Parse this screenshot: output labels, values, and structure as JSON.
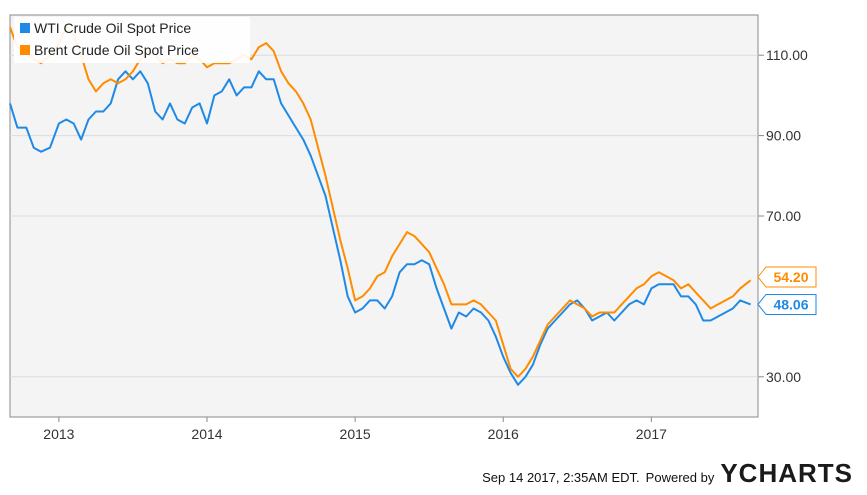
{
  "chart_data": {
    "type": "line",
    "title": "",
    "xlabel": "",
    "ylabel": "",
    "x_ticks": [
      "2013",
      "2014",
      "2015",
      "2016",
      "2017"
    ],
    "y_ticks": [
      "30.00",
      "70.00",
      "90.00",
      "110.00"
    ],
    "ylim": [
      20,
      120
    ],
    "grid": true,
    "legend_position": "top-left",
    "series": [
      {
        "name": "WTI Crude Oil Spot Price",
        "color": "#1f8ae6",
        "last_label": "48.06",
        "x": [
          2012.67,
          2012.72,
          2012.78,
          2012.83,
          2012.88,
          2012.94,
          2013.0,
          2013.05,
          2013.1,
          2013.15,
          2013.2,
          2013.25,
          2013.3,
          2013.35,
          2013.4,
          2013.45,
          2013.5,
          2013.55,
          2013.6,
          2013.65,
          2013.7,
          2013.75,
          2013.8,
          2013.85,
          2013.9,
          2013.95,
          2014.0,
          2014.05,
          2014.1,
          2014.15,
          2014.2,
          2014.25,
          2014.3,
          2014.35,
          2014.4,
          2014.45,
          2014.5,
          2014.55,
          2014.6,
          2014.65,
          2014.7,
          2014.75,
          2014.8,
          2014.85,
          2014.9,
          2014.95,
          2015.0,
          2015.05,
          2015.1,
          2015.15,
          2015.2,
          2015.25,
          2015.3,
          2015.35,
          2015.4,
          2015.45,
          2015.5,
          2015.55,
          2015.6,
          2015.65,
          2015.7,
          2015.75,
          2015.8,
          2015.85,
          2015.9,
          2015.95,
          2016.0,
          2016.05,
          2016.1,
          2016.15,
          2016.2,
          2016.25,
          2016.3,
          2016.35,
          2016.4,
          2016.45,
          2016.5,
          2016.55,
          2016.6,
          2016.65,
          2016.7,
          2016.75,
          2016.8,
          2016.85,
          2016.9,
          2016.95,
          2017.0,
          2017.05,
          2017.1,
          2017.15,
          2017.2,
          2017.25,
          2017.3,
          2017.35,
          2017.4,
          2017.45,
          2017.5,
          2017.55,
          2017.6,
          2017.67
        ],
        "values": [
          98,
          92,
          92,
          87,
          86,
          87,
          93,
          94,
          93,
          89,
          94,
          96,
          96,
          98,
          104,
          106,
          104,
          106,
          103,
          96,
          94,
          98,
          94,
          93,
          97,
          98,
          93,
          100,
          101,
          104,
          100,
          102,
          102,
          106,
          104,
          104,
          98,
          95,
          92,
          89,
          85,
          80,
          75,
          67,
          59,
          50,
          46,
          47,
          49,
          49,
          47,
          50,
          56,
          58,
          58,
          59,
          58,
          52,
          47,
          42,
          46,
          45,
          47,
          46,
          44,
          40,
          35,
          31,
          28,
          30,
          33,
          38,
          42,
          44,
          46,
          48,
          49,
          47,
          44,
          45,
          46,
          44,
          46,
          48,
          49,
          48,
          52,
          53,
          53,
          53,
          50,
          50,
          48,
          44,
          44,
          45,
          46,
          47,
          49,
          48
        ]
      },
      {
        "name": "Brent Crude Oil Spot Price",
        "color": "#ff8c00",
        "last_label": "54.20",
        "x": [
          2012.67,
          2012.72,
          2012.78,
          2012.83,
          2012.88,
          2012.94,
          2013.0,
          2013.05,
          2013.1,
          2013.15,
          2013.2,
          2013.25,
          2013.3,
          2013.35,
          2013.4,
          2013.45,
          2013.5,
          2013.55,
          2013.6,
          2013.65,
          2013.7,
          2013.75,
          2013.8,
          2013.85,
          2013.9,
          2013.95,
          2014.0,
          2014.05,
          2014.1,
          2014.15,
          2014.2,
          2014.25,
          2014.3,
          2014.35,
          2014.4,
          2014.45,
          2014.5,
          2014.55,
          2014.6,
          2014.65,
          2014.7,
          2014.75,
          2014.8,
          2014.85,
          2014.9,
          2014.95,
          2015.0,
          2015.05,
          2015.1,
          2015.15,
          2015.2,
          2015.25,
          2015.3,
          2015.35,
          2015.4,
          2015.45,
          2015.5,
          2015.55,
          2015.6,
          2015.65,
          2015.7,
          2015.75,
          2015.8,
          2015.85,
          2015.9,
          2015.95,
          2016.0,
          2016.05,
          2016.1,
          2016.15,
          2016.2,
          2016.25,
          2016.3,
          2016.35,
          2016.4,
          2016.45,
          2016.5,
          2016.55,
          2016.6,
          2016.65,
          2016.7,
          2016.75,
          2016.8,
          2016.85,
          2016.9,
          2016.95,
          2017.0,
          2017.05,
          2017.1,
          2017.15,
          2017.2,
          2017.25,
          2017.3,
          2017.35,
          2017.4,
          2017.45,
          2017.5,
          2017.55,
          2017.6,
          2017.67
        ],
        "values": [
          117,
          112,
          111,
          109,
          108,
          110,
          113,
          117,
          115,
          110,
          104,
          101,
          103,
          104,
          103,
          104,
          106,
          109,
          111,
          110,
          108,
          109,
          108,
          108,
          110,
          109,
          107,
          108,
          108,
          108,
          109,
          110,
          109,
          112,
          113,
          111,
          106,
          103,
          101,
          98,
          94,
          87,
          80,
          72,
          64,
          57,
          49,
          50,
          52,
          55,
          56,
          60,
          63,
          66,
          65,
          63,
          61,
          57,
          53,
          48,
          48,
          48,
          49,
          48,
          46,
          44,
          38,
          32,
          30,
          32,
          35,
          39,
          43,
          45,
          47,
          49,
          48,
          47,
          45,
          46,
          46,
          46,
          48,
          50,
          52,
          53,
          55,
          56,
          55,
          54,
          52,
          53,
          51,
          49,
          47,
          48,
          49,
          50,
          52,
          54
        ]
      }
    ]
  },
  "footer": {
    "timestamp": "Sep 14 2017, 2:35AM EDT.",
    "powered_by": "Powered by",
    "brand": "YCHARTS"
  }
}
